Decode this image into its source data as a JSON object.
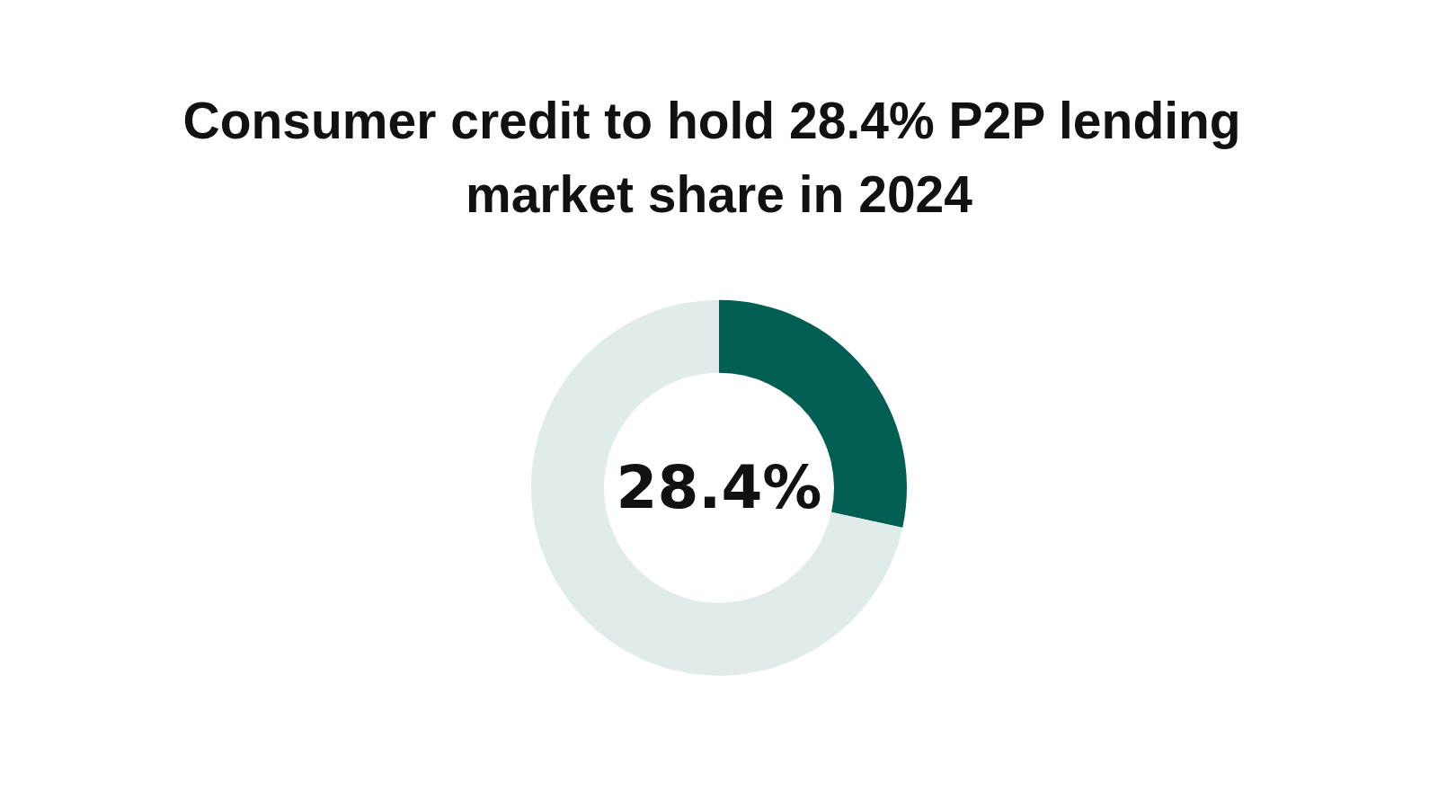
{
  "chart_data": {
    "type": "donut",
    "title": "Consumer credit to hold 28.4% P2P lending market share in 2024",
    "categories": [
      null,
      null
    ],
    "values": [
      28.4,
      71.6
    ],
    "colors": [
      "#005f52",
      "#dfece9"
    ],
    "value_labels": [
      "28.4%",
      null
    ]
  }
}
